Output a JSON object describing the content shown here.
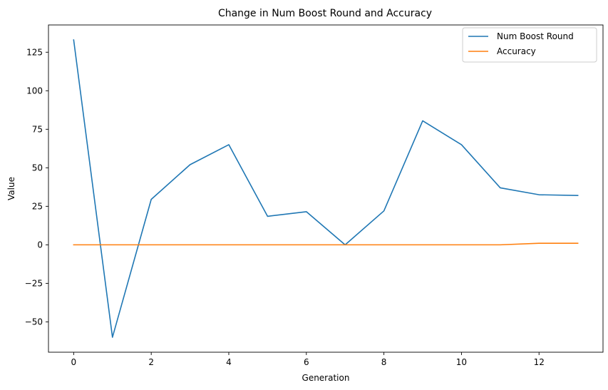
{
  "chart_data": {
    "type": "line",
    "title": "Change in Num Boost Round and Accuracy",
    "xlabel": "Generation",
    "ylabel": "Value",
    "xlim": [
      -0.65,
      13.65
    ],
    "ylim": [
      -69.7,
      142.7
    ],
    "xticks": [
      0,
      2,
      4,
      6,
      8,
      10,
      12
    ],
    "yticks": [
      -50,
      -25,
      0,
      25,
      50,
      75,
      100,
      125
    ],
    "grid": false,
    "legend_position": "top-right",
    "x": [
      0,
      1,
      2,
      3,
      4,
      5,
      6,
      7,
      8,
      9,
      10,
      11,
      12,
      13
    ],
    "series": [
      {
        "name": "Num Boost Round",
        "color": "#1f77b4",
        "values": [
          133,
          -60,
          29.5,
          52,
          65,
          18.5,
          21.5,
          0,
          22,
          80.5,
          65,
          37,
          32.5,
          32
        ]
      },
      {
        "name": "Accuracy",
        "color": "#ff7f0e",
        "values": [
          0,
          0,
          0,
          0,
          0,
          0,
          0,
          0,
          0,
          0,
          0,
          0,
          1,
          1
        ]
      }
    ]
  }
}
